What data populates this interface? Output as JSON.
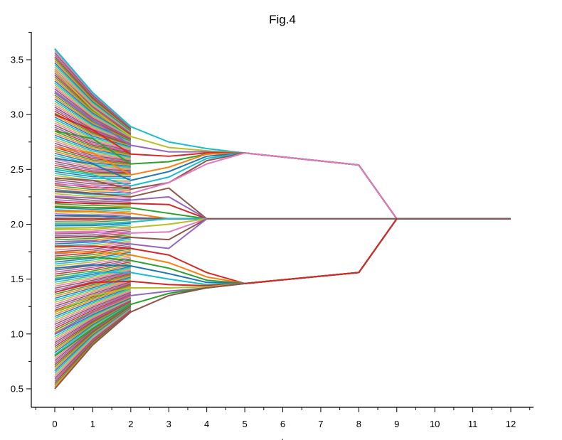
{
  "chart_data": {
    "type": "line",
    "title": "Fig.4",
    "xlabel": ".",
    "ylabel": "",
    "xlim": [
      -0.6,
      12.6
    ],
    "ylim": [
      0.35,
      3.75
    ],
    "x_ticks": [
      0,
      1,
      2,
      3,
      4,
      5,
      6,
      7,
      8,
      9,
      10,
      11,
      12
    ],
    "y_ticks": [
      0.5,
      1.0,
      1.5,
      2.0,
      2.5,
      3.0,
      3.5
    ],
    "grid": false,
    "legend": "none",
    "palette": [
      "#1f77b4",
      "#ff7f0e",
      "#2ca02c",
      "#d62728",
      "#9467bd",
      "#8c564b",
      "#e377c2",
      "#bcbd22",
      "#17becf"
    ],
    "series": [
      {
        "x": [
          0,
          1,
          2,
          3,
          4,
          5,
          8,
          9,
          12
        ],
        "values": [
          3.6,
          3.2,
          2.89,
          2.75,
          2.69,
          2.65,
          2.54,
          2.05,
          2.05
        ],
        "color": "#17becf"
      },
      {
        "x": [
          0,
          1,
          2,
          3,
          4,
          5,
          8,
          9,
          12
        ],
        "values": [
          3.4,
          3.05,
          2.8,
          2.7,
          2.67,
          2.65,
          2.54,
          2.05,
          2.05
        ],
        "color": "#bcbd22"
      },
      {
        "x": [
          0,
          1,
          2,
          3,
          4,
          5,
          8,
          9,
          12
        ],
        "values": [
          3.2,
          2.95,
          2.72,
          2.66,
          2.66,
          2.65,
          2.54,
          2.05,
          2.05
        ],
        "color": "#9467bd"
      },
      {
        "x": [
          0,
          1,
          2,
          3,
          4,
          5,
          8,
          9,
          12
        ],
        "values": [
          3.0,
          2.86,
          2.64,
          2.62,
          2.65,
          2.65,
          2.54,
          2.05,
          2.05
        ],
        "color": "#d62728"
      },
      {
        "x": [
          0,
          1,
          2,
          3,
          4,
          5,
          8,
          9,
          12
        ],
        "values": [
          2.85,
          2.78,
          2.55,
          2.57,
          2.64,
          2.65,
          2.54,
          2.05,
          2.05
        ],
        "color": "#2ca02c"
      },
      {
        "x": [
          0,
          1,
          2,
          3,
          4,
          5,
          8,
          9,
          12
        ],
        "values": [
          2.7,
          2.65,
          2.45,
          2.52,
          2.64,
          2.65,
          2.54,
          2.05,
          2.05
        ],
        "color": "#ff7f0e"
      },
      {
        "x": [
          0,
          1,
          2,
          3,
          4,
          5,
          8,
          9,
          12
        ],
        "values": [
          2.6,
          2.55,
          2.4,
          2.48,
          2.62,
          2.65,
          2.54,
          2.05,
          2.05
        ],
        "color": "#1f77b4"
      },
      {
        "x": [
          0,
          1,
          2,
          3,
          4,
          5,
          8,
          9,
          12
        ],
        "values": [
          2.5,
          2.45,
          2.35,
          2.43,
          2.6,
          2.65,
          2.54,
          2.05,
          2.05
        ],
        "color": "#17becf"
      },
      {
        "x": [
          0,
          1,
          2,
          3,
          4,
          5,
          8,
          9,
          12
        ],
        "values": [
          2.42,
          2.4,
          2.32,
          2.38,
          2.58,
          2.65,
          2.54,
          2.05,
          2.05
        ],
        "color": "#8c564b"
      },
      {
        "x": [
          0,
          1,
          2,
          3,
          4,
          5,
          8,
          9,
          12
        ],
        "values": [
          2.36,
          2.35,
          2.28,
          2.38,
          2.55,
          2.65,
          2.54,
          2.05,
          2.05
        ],
        "color": "#e377c2"
      },
      {
        "x": [
          0,
          1,
          2,
          3,
          4
        ],
        "values": [
          2.3,
          2.28,
          2.25,
          2.33,
          2.05
        ],
        "color": "#8c564b"
      },
      {
        "x": [
          0,
          1,
          2,
          3,
          4
        ],
        "values": [
          2.25,
          2.24,
          2.22,
          2.25,
          2.05
        ],
        "color": "#9467bd"
      },
      {
        "x": [
          0,
          1,
          2,
          3,
          4
        ],
        "values": [
          2.2,
          2.19,
          2.19,
          2.18,
          2.05
        ],
        "color": "#d62728"
      },
      {
        "x": [
          0,
          1,
          2,
          3,
          4
        ],
        "values": [
          2.16,
          2.15,
          2.15,
          2.1,
          2.05
        ],
        "color": "#2ca02c"
      },
      {
        "x": [
          0,
          1,
          2,
          3,
          4
        ],
        "values": [
          2.12,
          2.12,
          2.1,
          2.05,
          2.05
        ],
        "color": "#ff7f0e"
      },
      {
        "x": [
          0,
          1,
          2,
          3,
          4,
          9,
          12
        ],
        "values": [
          2.08,
          2.08,
          2.06,
          2.05,
          2.05,
          2.05,
          2.05
        ],
        "color": "#1f77b4"
      },
      {
        "x": [
          0,
          1,
          2,
          3,
          4,
          9,
          12
        ],
        "values": [
          2.05,
          2.05,
          2.05,
          2.05,
          2.05,
          2.05,
          2.05
        ],
        "color": "#8c564b"
      },
      {
        "x": [
          0,
          1,
          2,
          3,
          4
        ],
        "values": [
          2.0,
          2.0,
          2.02,
          2.05,
          2.05
        ],
        "color": "#17becf"
      },
      {
        "x": [
          0,
          1,
          2,
          3,
          4
        ],
        "values": [
          1.96,
          1.97,
          1.97,
          2.0,
          2.05
        ],
        "color": "#bcbd22"
      },
      {
        "x": [
          0,
          1,
          2,
          3,
          4
        ],
        "values": [
          1.92,
          1.93,
          1.92,
          1.93,
          2.05
        ],
        "color": "#e377c2"
      },
      {
        "x": [
          0,
          1,
          2,
          3,
          4
        ],
        "values": [
          1.88,
          1.89,
          1.88,
          1.86,
          2.05
        ],
        "color": "#8c564b"
      },
      {
        "x": [
          0,
          1,
          2,
          3,
          4
        ],
        "values": [
          1.84,
          1.85,
          1.82,
          1.78,
          2.05
        ],
        "color": "#9467bd"
      },
      {
        "x": [
          0,
          1,
          2,
          3,
          4,
          5,
          8,
          9
        ],
        "values": [
          1.8,
          1.8,
          1.78,
          1.72,
          1.56,
          1.46,
          1.56,
          2.05
        ],
        "color": "#d62728"
      },
      {
        "x": [
          0,
          1,
          2,
          3,
          4,
          5,
          8,
          9
        ],
        "values": [
          1.74,
          1.75,
          1.72,
          1.65,
          1.52,
          1.46,
          1.56,
          2.05
        ],
        "color": "#ff7f0e"
      },
      {
        "x": [
          0,
          1,
          2,
          3,
          4,
          5,
          8,
          9
        ],
        "values": [
          1.68,
          1.7,
          1.67,
          1.6,
          1.49,
          1.46,
          1.56,
          2.05
        ],
        "color": "#2ca02c"
      },
      {
        "x": [
          0,
          1,
          2,
          3,
          4,
          5,
          8,
          9
        ],
        "values": [
          1.6,
          1.63,
          1.62,
          1.55,
          1.47,
          1.46,
          1.56,
          2.05
        ],
        "color": "#1f77b4"
      },
      {
        "x": [
          0,
          1,
          2,
          3,
          4,
          5,
          8,
          9
        ],
        "values": [
          1.5,
          1.56,
          1.56,
          1.5,
          1.45,
          1.46,
          1.56,
          2.05
        ],
        "color": "#17becf"
      },
      {
        "x": [
          0,
          1,
          2,
          3,
          4,
          5,
          8,
          9
        ],
        "values": [
          1.38,
          1.47,
          1.48,
          1.45,
          1.44,
          1.46,
          1.56,
          2.05
        ],
        "color": "#d62728"
      },
      {
        "x": [
          0,
          1,
          2,
          3,
          4,
          5,
          8,
          9
        ],
        "values": [
          1.2,
          1.35,
          1.42,
          1.42,
          1.43,
          1.46,
          1.56,
          2.05
        ],
        "color": "#bcbd22"
      },
      {
        "x": [
          0,
          1,
          2,
          3,
          4,
          5,
          8,
          9
        ],
        "values": [
          1.0,
          1.2,
          1.35,
          1.39,
          1.42,
          1.46,
          1.56,
          2.05
        ],
        "color": "#9467bd"
      },
      {
        "x": [
          0,
          1,
          2,
          3,
          4,
          5,
          8,
          9
        ],
        "values": [
          0.8,
          1.05,
          1.27,
          1.37,
          1.42,
          1.46,
          1.56,
          2.05
        ],
        "color": "#2ca02c"
      },
      {
        "x": [
          0,
          1,
          2,
          3,
          4,
          5,
          8,
          9
        ],
        "values": [
          0.5,
          0.9,
          1.2,
          1.35,
          1.42,
          1.46,
          1.56,
          2.05
        ],
        "color": "#8c564b"
      },
      {
        "x": [
          5,
          8,
          9
        ],
        "values": [
          1.46,
          1.56,
          2.05
        ],
        "color": "#d62728"
      }
    ]
  }
}
